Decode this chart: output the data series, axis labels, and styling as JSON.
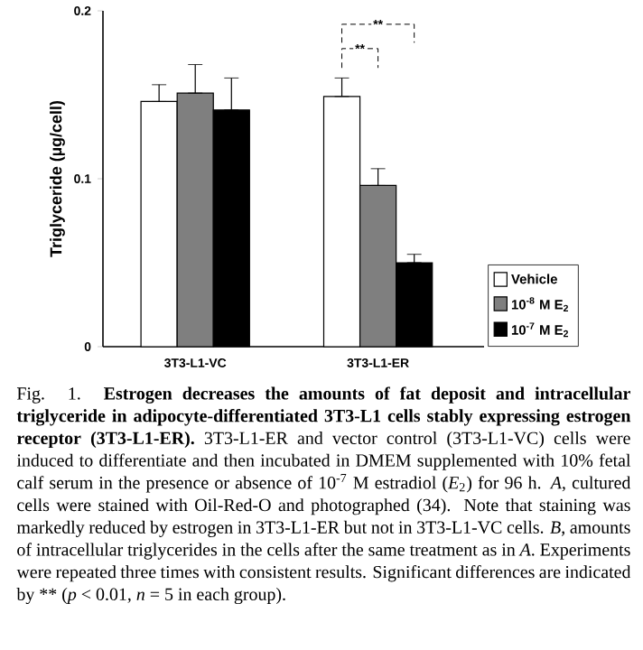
{
  "chart_data": {
    "type": "bar",
    "categories": [
      "3T3-L1-VC",
      "3T3-L1-ER"
    ],
    "ylabel": "Triglyceride (µg/cell)",
    "ylim": [
      0,
      0.2
    ],
    "yticks": [
      0,
      0.1,
      0.2
    ],
    "series": [
      {
        "name": "Vehicle",
        "color": "#ffffff",
        "values": [
          0.146,
          0.149
        ],
        "errors": [
          [
            0.146,
            0.156
          ],
          [
            0.149,
            0.16
          ]
        ]
      },
      {
        "name": "10$^{-8}$ M E$_{2}$",
        "color": "#7f7f7f",
        "values": [
          0.151,
          0.096
        ],
        "errors": [
          [
            0.151,
            0.168
          ],
          [
            0.096,
            0.106
          ]
        ]
      },
      {
        "name": "10$^{-7}$ M E$_{2}$",
        "color": "#000000",
        "values": [
          0.141,
          0.05
        ],
        "errors": [
          [
            0.141,
            0.16
          ],
          [
            0.05,
            0.055
          ]
        ]
      }
    ],
    "legend": "bottom right",
    "grid": false,
    "annotations": [
      "**",
      "**",
      "Fig. 1. **Estrogen decreases the amounts of fat deposit and intracellular triglyceride in adipocyte-differentiated 3T3-L1 cells stably expressing estrogen receptor (3T3-L1-ER).** 3T3-L1-ER and vector control (3T3-L1-VC) cells were induced to differentiate and then incubated in DMEM supplemented with 10% fetal calf serum in the presence or absence of 10$^{-7}$ M estradiol (*E*$_{2}$) for 96 h. *A*, cultured cells were stained with Oil-Red-O and photographed (34). Note that staining was markedly reduced by estrogen in 3T3-L1-ER but not in 3T3-L1-VC cells. *B*, amounts of intracellular triglycerides in the cells after the same treatment as in *A*. Experiments were repeated three times with consistent results. Significant differences are indicated by",
      "**",
      "(*p* < 0.01, *n* = 5 in each group)."
    ]
  }
}
